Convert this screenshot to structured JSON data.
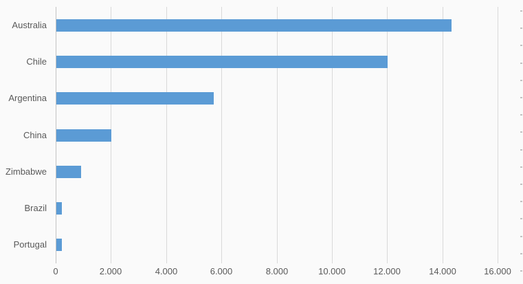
{
  "chart_data": {
    "type": "bar",
    "orientation": "horizontal",
    "title": "",
    "xlabel": "",
    "ylabel": "",
    "categories": [
      "Australia",
      "Chile",
      "Argentina",
      "China",
      "Zimbabwe",
      "Brazil",
      "Portugal"
    ],
    "values": [
      14300,
      12000,
      5700,
      2000,
      900,
      200,
      200
    ],
    "xlim": [
      0,
      16000
    ],
    "x_tick_values": [
      0,
      2000,
      4000,
      6000,
      8000,
      10000,
      12000,
      14000,
      16000
    ],
    "x_tick_labels": [
      "0",
      "2.000",
      "4.000",
      "6.000",
      "8.000",
      "10.000",
      "12.000",
      "14.000",
      "16.000"
    ],
    "grid": true,
    "legend": false,
    "colors": {
      "bar": "#5B9BD5",
      "background": "#FAFAFA",
      "gridline": "#D9D9D9",
      "axis_line": "#C3C3C3",
      "label_text": "#595959",
      "edge_tick": "#C2C2C2"
    }
  }
}
